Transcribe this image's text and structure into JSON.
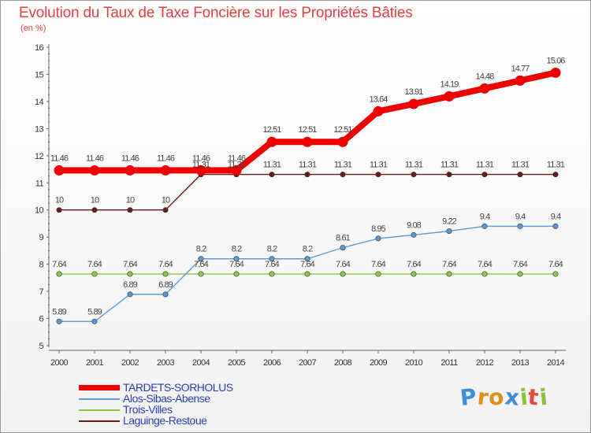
{
  "chart_data": {
    "type": "line",
    "title": "Evolution du Taux de Taxe Foncière sur les Propriétés Bâties",
    "ylabel": "(en %)",
    "xlabel": "",
    "ylim": [
      5,
      16
    ],
    "yticks": [
      "5",
      "6",
      "7",
      "8",
      "9",
      "10",
      "11",
      "12",
      "13",
      "14",
      "15",
      "16"
    ],
    "categories": [
      "2000",
      "2001",
      "2002",
      "2003",
      "2004",
      "2005",
      "2006",
      "2007",
      "2008",
      "2009",
      "2010",
      "2011",
      "2012",
      "2013",
      "2014"
    ],
    "grid": false,
    "legend_position": "bottom-left",
    "series": [
      {
        "name": "TARDETS-SORHOLUS",
        "color": "#ee0000",
        "values": [
          11.46,
          11.46,
          11.46,
          11.46,
          11.46,
          11.46,
          12.51,
          12.51,
          12.51,
          13.64,
          13.91,
          14.19,
          14.48,
          14.77,
          15.06
        ],
        "labels": [
          "11.46",
          "11.46",
          "11.46",
          "11.46",
          "11.46",
          "11.46",
          "12.51",
          "12.51",
          "12.51",
          "13.64",
          "13.91",
          "14.19",
          "14.48",
          "14.77",
          "15.06"
        ]
      },
      {
        "name": "Alos-Sibas-Abense",
        "color": "#5b9bd5",
        "values": [
          5.89,
          5.89,
          6.89,
          6.89,
          8.2,
          8.2,
          8.2,
          8.2,
          8.61,
          8.95,
          9.08,
          9.22,
          9.4,
          9.4,
          9.4
        ],
        "labels": [
          "5.89",
          "5.89",
          "6.89",
          "6.89",
          "8.2",
          "8.2",
          "8.2",
          "8.2",
          "8.61",
          "8.95",
          "9.08",
          "9.22",
          "9.4",
          "9.4",
          "9.4"
        ]
      },
      {
        "name": "Trois-Villes",
        "color": "#88cc44",
        "values": [
          7.64,
          7.64,
          7.64,
          7.64,
          7.64,
          7.64,
          7.64,
          7.64,
          7.64,
          7.64,
          7.64,
          7.64,
          7.64,
          7.64,
          7.64
        ],
        "labels": [
          "7.64",
          "7.64",
          "7.64",
          "7.64",
          "7.64",
          "7.64",
          "7.64",
          "7.64",
          "7.64",
          "7.64",
          "7.64",
          "7.64",
          "7.64",
          "7.64",
          "7.64"
        ]
      },
      {
        "name": "Laguinge-Restoue",
        "color": "#6b1a1a",
        "values": [
          10,
          10,
          10,
          10,
          11.31,
          11.31,
          11.31,
          11.31,
          11.31,
          11.31,
          11.31,
          11.31,
          11.31,
          11.31,
          11.31
        ],
        "labels": [
          "10",
          "10",
          "10",
          "10",
          "11.31",
          "11.31",
          "11.31",
          "11.31",
          "11.31",
          "11.31",
          "11.31",
          "11.31",
          "11.31",
          "11.31",
          "11.31"
        ]
      }
    ]
  },
  "logo": {
    "letters": [
      "P",
      "r",
      "o",
      "x",
      "i",
      "t",
      "i"
    ],
    "colors": [
      "#3a8fd8",
      "#e0901a",
      "#e0901a",
      "#3a8fd8",
      "#88c23a",
      "#e04a3a",
      "#88c23a"
    ]
  }
}
